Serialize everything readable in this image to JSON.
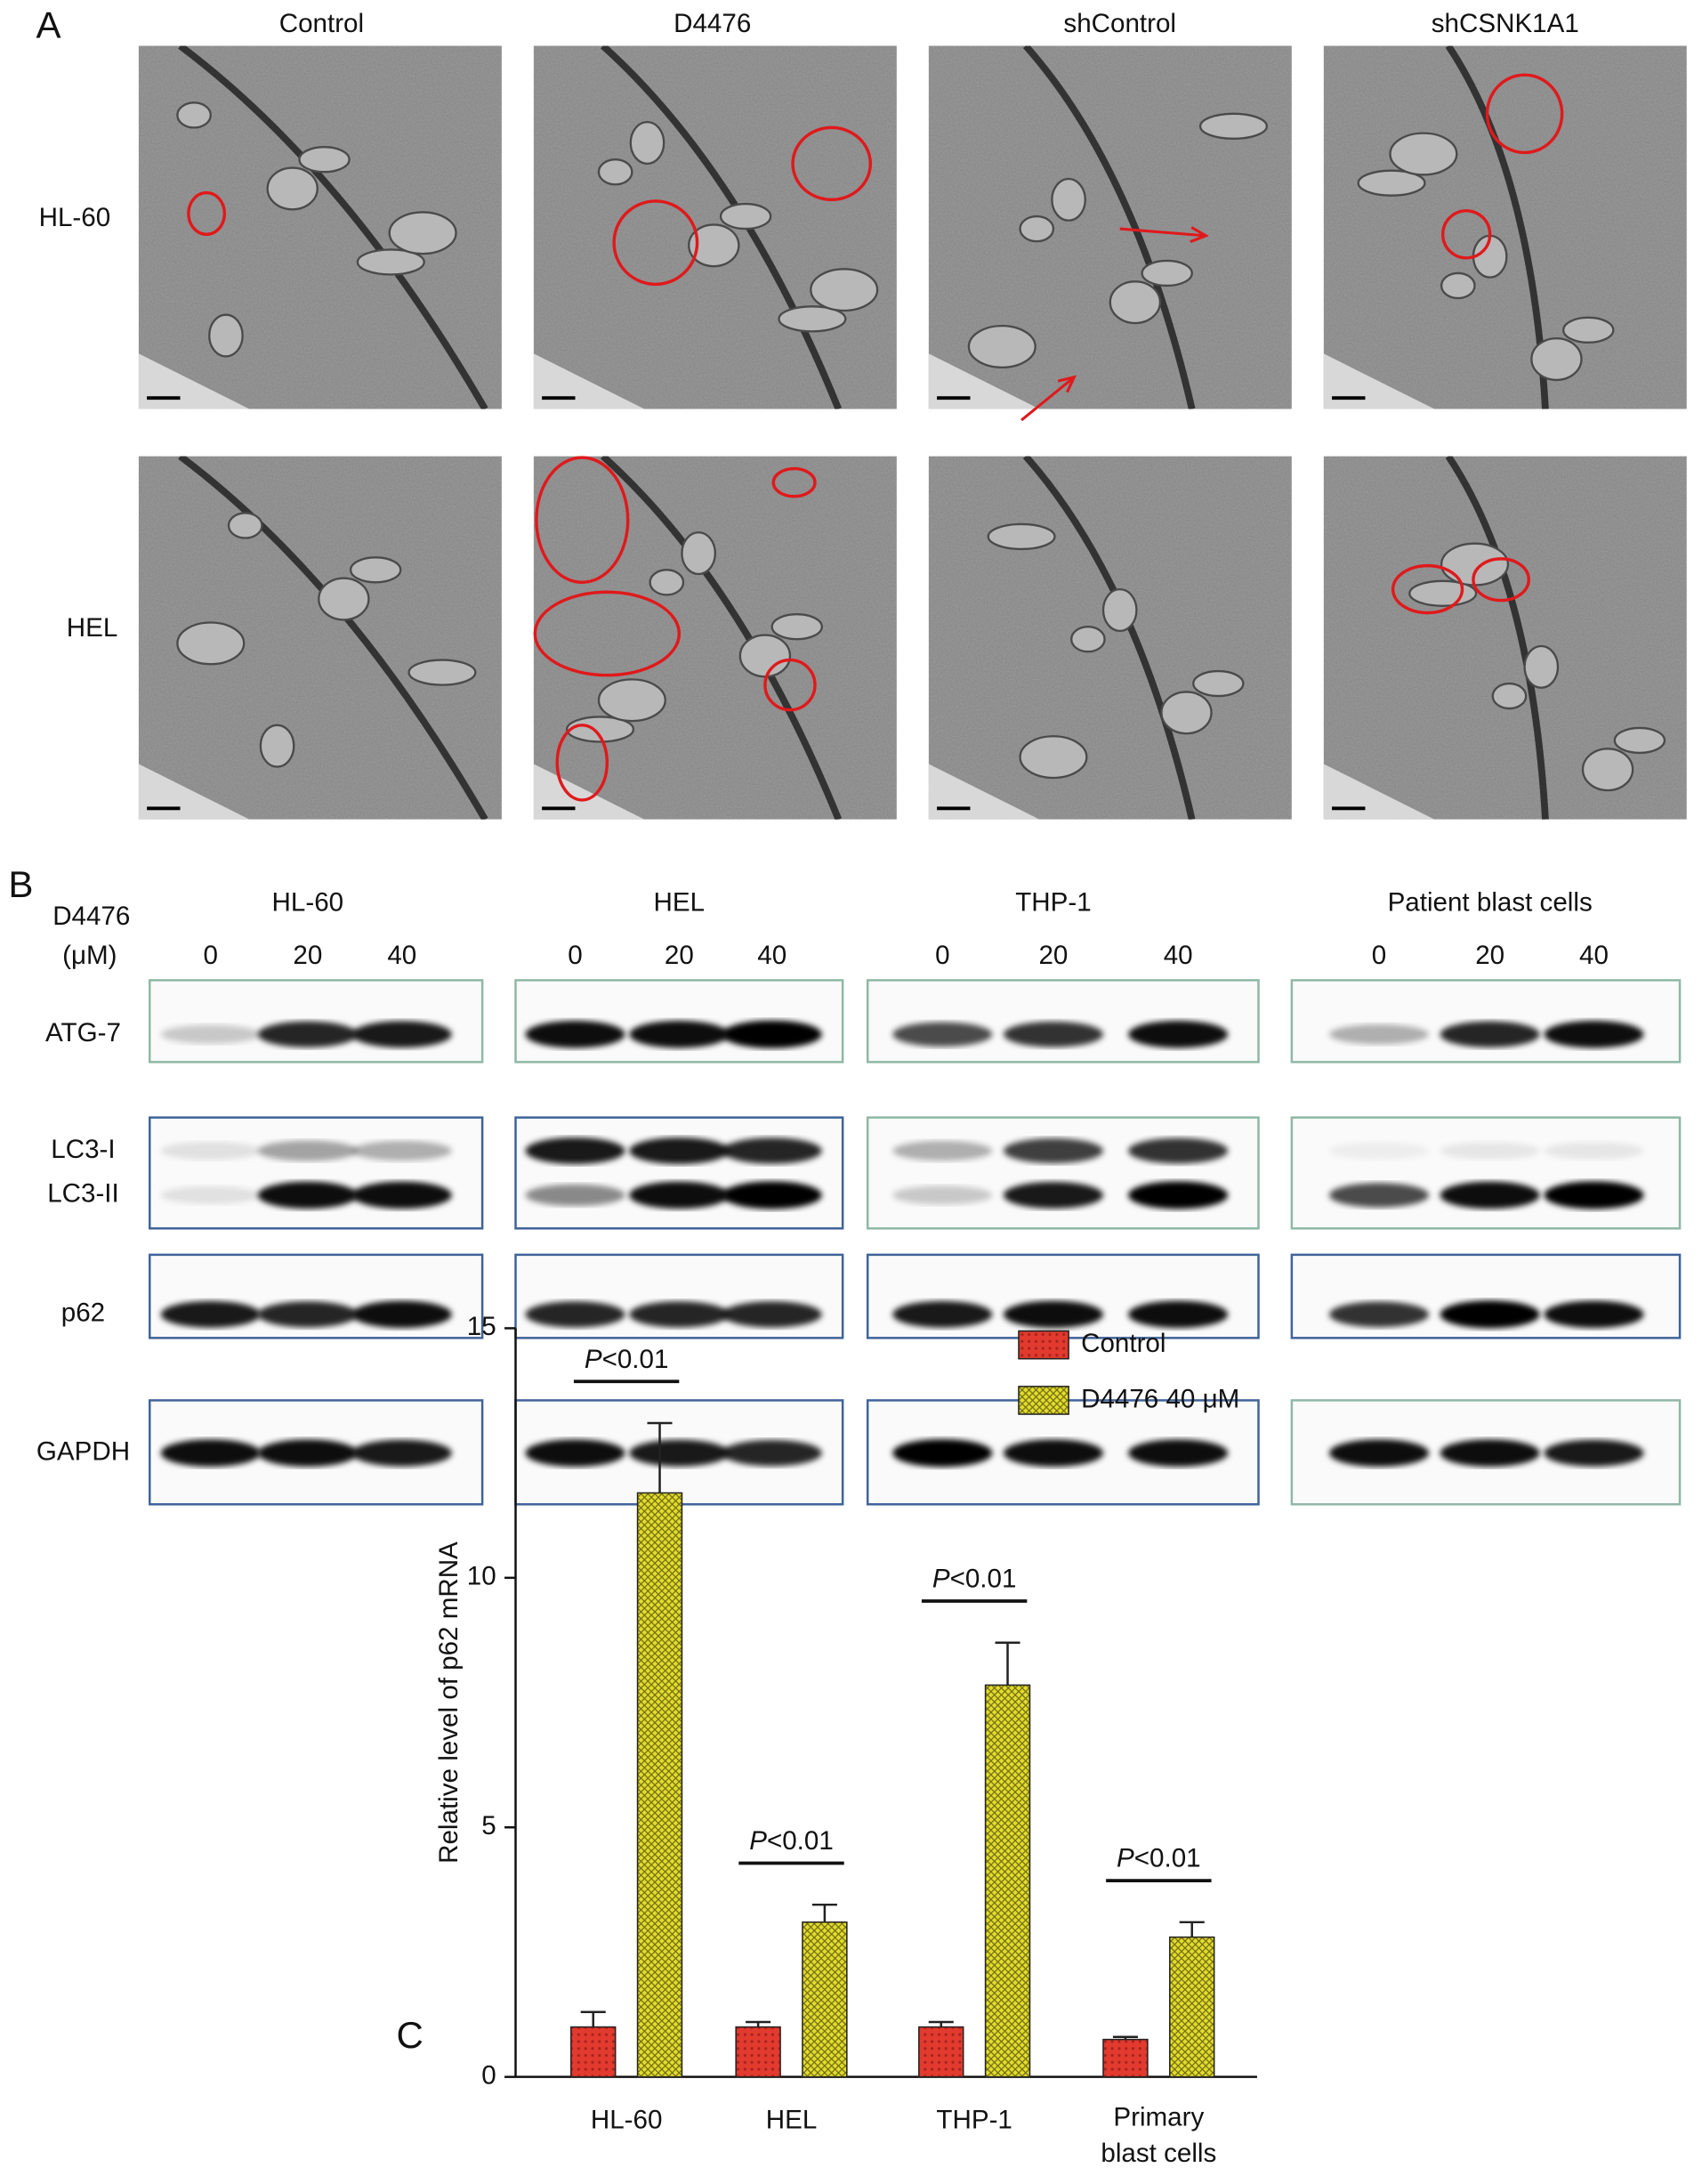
{
  "panel_a": {
    "label": "A",
    "columns": [
      "Control",
      "D4476",
      "shControl",
      "shCSNK1A1"
    ],
    "rows": [
      "HL-60",
      "HEL"
    ]
  },
  "panel_b": {
    "label": "B",
    "dose_label": [
      "D4476",
      "(μM)"
    ],
    "groups": [
      {
        "title": "HL-60",
        "doses": [
          "0",
          "20",
          "40"
        ]
      },
      {
        "title": "HEL",
        "doses": [
          "0",
          "20",
          "40"
        ]
      },
      {
        "title": "THP-1",
        "doses": [
          "0",
          "20",
          "40"
        ]
      },
      {
        "title": "Patient blast cells",
        "doses": [
          "0",
          "20",
          "40"
        ]
      }
    ],
    "proteins": [
      "ATG-7",
      "LC3-I",
      "LC3-II",
      "p62",
      "GAPDH"
    ]
  },
  "chart_data": {
    "type": "bar",
    "panel_label": "C",
    "y_label": "Relative level of p62 mRNA",
    "categories": [
      "HL-60",
      "HEL",
      "THP-1",
      "Primary blast cells"
    ],
    "series": [
      {
        "name": "Control",
        "color": "#e23a2e",
        "values": [
          1.0,
          1.0,
          1.0,
          0.75
        ],
        "errors": [
          0.3,
          0.1,
          0.1,
          0.05
        ]
      },
      {
        "name": "D4476 40 μM",
        "color": "#e4dc2a",
        "values": [
          11.7,
          3.1,
          7.85,
          2.8
        ],
        "errors": [
          1.4,
          0.35,
          0.85,
          0.3
        ]
      }
    ],
    "annotations": [
      "P<0.01",
      "P<0.01",
      "P<0.01",
      "P<0.01"
    ],
    "ylim": [
      0,
      15
    ],
    "yticks": [
      0,
      5,
      10,
      15
    ]
  }
}
